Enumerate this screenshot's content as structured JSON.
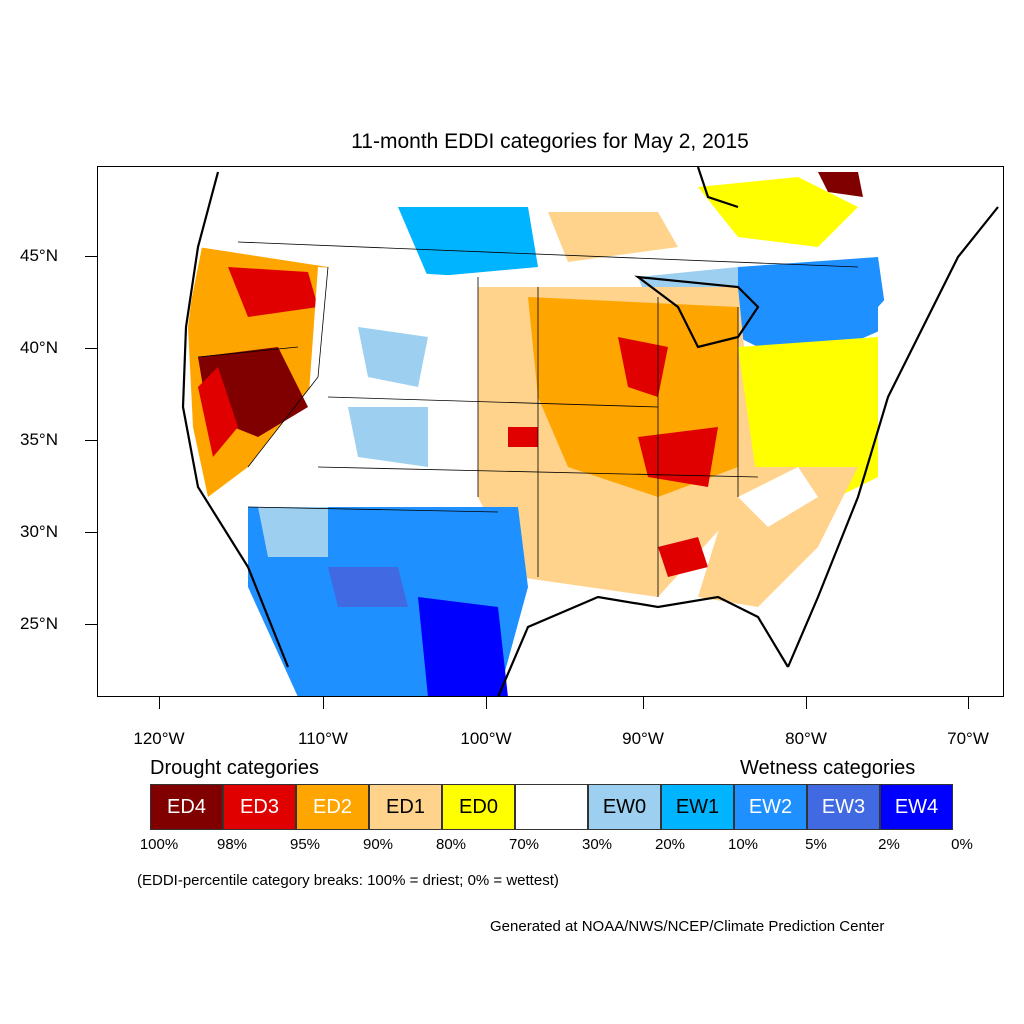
{
  "title": "11-month EDDI categories for May 2, 2015",
  "lat_labels": [
    "45°N",
    "40°N",
    "35°N",
    "30°N",
    "25°N"
  ],
  "lon_labels": [
    "120°W",
    "110°W",
    "100°W",
    "90°W",
    "80°W",
    "70°W"
  ],
  "legend": {
    "drought_heading": "Drought categories",
    "wetness_heading": "Wetness categories",
    "categories": [
      {
        "label": "ED4",
        "color": "#800000",
        "text_color": "#ffffff"
      },
      {
        "label": "ED3",
        "color": "#e00000",
        "text_color": "#ffffff"
      },
      {
        "label": "ED2",
        "color": "#ffa500",
        "text_color": "#ffffff"
      },
      {
        "label": "ED1",
        "color": "#ffd38c",
        "text_color": "#000000"
      },
      {
        "label": "ED0",
        "color": "#ffff00",
        "text_color": "#000000"
      },
      {
        "label": "",
        "color": "#ffffff",
        "text_color": "#000000"
      },
      {
        "label": "EW0",
        "color": "#9ccff0",
        "text_color": "#000000"
      },
      {
        "label": "EW1",
        "color": "#00b4ff",
        "text_color": "#000000"
      },
      {
        "label": "EW2",
        "color": "#1e90ff",
        "text_color": "#ffffff"
      },
      {
        "label": "EW3",
        "color": "#4169e1",
        "text_color": "#ffffff"
      },
      {
        "label": "EW4",
        "color": "#0000ff",
        "text_color": "#ffffff"
      }
    ],
    "percentiles": [
      "100%",
      "98%",
      "95%",
      "90%",
      "80%",
      "70%",
      "30%",
      "20%",
      "10%",
      "5%",
      "2%",
      "0%"
    ]
  },
  "note": "(EDDI-percentile category breaks: 100% = driest; 0% = wettest)",
  "credit": "Generated at NOAA/NWS/NCEP/Climate Prediction Center"
}
